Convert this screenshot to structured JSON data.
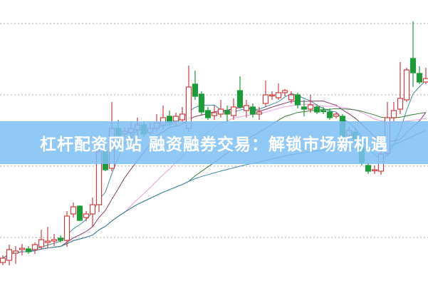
{
  "banner": {
    "title": "杠杆配资网站 融资融券交易：解锁市场新机遇"
  },
  "chart_data": {
    "type": "candlestick",
    "ylim": [
      0,
      400
    ],
    "gridlines_y": [
      67,
      167,
      267,
      367
    ],
    "grid": "horizontal dotted",
    "colors": {
      "up": "#d23c3c",
      "down": "#1f9a3a",
      "ma": [
        "#3f8f9f",
        "#8a3a6a",
        "#e8a0e0",
        "#3d7d3d",
        "#3a86a8"
      ]
    },
    "moving_averages": [
      5,
      10,
      20,
      30,
      60
    ],
    "candles": [
      [
        32,
        38,
        42,
        28
      ],
      [
        35,
        50,
        57,
        28
      ],
      [
        45,
        48,
        55,
        30
      ],
      [
        50,
        52,
        58,
        42
      ],
      [
        51,
        47,
        55,
        44
      ],
      [
        50,
        57,
        60,
        44
      ],
      [
        54,
        64,
        78,
        50
      ],
      [
        60,
        62,
        82,
        52
      ],
      [
        62,
        64,
        72,
        55
      ],
      [
        66,
        63,
        70,
        60
      ],
      [
        63,
        97,
        104,
        54
      ],
      [
        100,
        110,
        116,
        95
      ],
      [
        111,
        91,
        112,
        90
      ],
      [
        95,
        100,
        104,
        90
      ],
      [
        100,
        113,
        123,
        82
      ],
      [
        113,
        187,
        195,
        103
      ],
      [
        188,
        162,
        203,
        160
      ],
      [
        164,
        220,
        257,
        160
      ],
      [
        220,
        210,
        232,
        205
      ],
      [
        212,
        216,
        222,
        208
      ],
      [
        214,
        220,
        230,
        205
      ],
      [
        218,
        225,
        235,
        210
      ],
      [
        225,
        212,
        230,
        208
      ],
      [
        214,
        220,
        228,
        210
      ],
      [
        220,
        228,
        240,
        215
      ],
      [
        225,
        235,
        252,
        218
      ],
      [
        237,
        228,
        245,
        224
      ],
      [
        230,
        237,
        242,
        222
      ],
      [
        232,
        240,
        250,
        228
      ],
      [
        220,
        278,
        308,
        215
      ],
      [
        282,
        265,
        301,
        260
      ],
      [
        268,
        243,
        272,
        238
      ],
      [
        245,
        235,
        250,
        232
      ],
      [
        238,
        242,
        252,
        232
      ],
      [
        240,
        247,
        260,
        235
      ],
      [
        245,
        240,
        252,
        230
      ],
      [
        238,
        250,
        262,
        232
      ],
      [
        273,
        250,
        293,
        248
      ],
      [
        245,
        252,
        260,
        235
      ],
      [
        250,
        240,
        255,
        235
      ],
      [
        240,
        243,
        250,
        232
      ],
      [
        255,
        267,
        287,
        250
      ],
      [
        266,
        267,
        272,
        260
      ],
      [
        263,
        270,
        283,
        260
      ],
      [
        270,
        273,
        275,
        265
      ],
      [
        260,
        267,
        272,
        255
      ],
      [
        267,
        253,
        270,
        248
      ],
      [
        250,
        247,
        260,
        237
      ],
      [
        247,
        253,
        267,
        242
      ],
      [
        250,
        243,
        254,
        240
      ],
      [
        245,
        244,
        250,
        240
      ],
      [
        243,
        235,
        248,
        232
      ],
      [
        237,
        240,
        242,
        234
      ],
      [
        237,
        205,
        240,
        200
      ],
      [
        210,
        217,
        222,
        204
      ],
      [
        215,
        205,
        220,
        200
      ],
      [
        193,
        172,
        200,
        168
      ],
      [
        168,
        160,
        172,
        156
      ],
      [
        162,
        162,
        168,
        156
      ],
      [
        160,
        184,
        190,
        155
      ],
      [
        185,
        235,
        257,
        182
      ],
      [
        235,
        245,
        257,
        230
      ],
      [
        247,
        262,
        313,
        240
      ],
      [
        260,
        302,
        305,
        257
      ],
      [
        318,
        298,
        370,
        278
      ],
      [
        297,
        285,
        307,
        282
      ],
      [
        285,
        290,
        305,
        282
      ]
    ]
  }
}
